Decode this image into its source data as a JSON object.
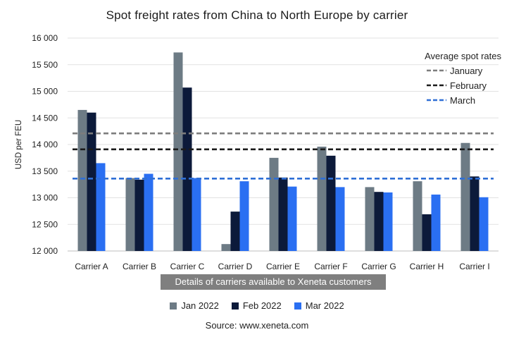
{
  "chart_data": {
    "type": "bar",
    "title": "Spot freight rates from China to North Europe by carrier",
    "ylabel": "USD per FEU",
    "xlabel": "Details of carriers available to Xeneta customers",
    "ylim": [
      12000,
      16000
    ],
    "yticks": [
      "12 000",
      "12 500",
      "13 000",
      "13 500",
      "14 000",
      "14 500",
      "15 000",
      "15 500",
      "16 000"
    ],
    "grid": true,
    "categories": [
      "Carrier A",
      "Carrier B",
      "Carrier C",
      "Carrier D",
      "Carrier E",
      "Carrier F",
      "Carrier G",
      "Carrier H",
      "Carrier I"
    ],
    "series": [
      {
        "name": "Jan 2022",
        "color": "#6d7b85",
        "values": [
          14650,
          13370,
          15730,
          12130,
          13750,
          13960,
          13200,
          13310,
          14030
        ]
      },
      {
        "name": "Feb 2022",
        "color": "#0c1a3a",
        "values": [
          14600,
          13340,
          15070,
          12740,
          13380,
          13790,
          13110,
          12690,
          13400
        ]
      },
      {
        "name": "Mar 2022",
        "color": "#2a6ff2",
        "values": [
          13650,
          13450,
          13370,
          13310,
          13210,
          13200,
          13100,
          13060,
          13010
        ]
      }
    ],
    "reference_lines": {
      "title": "Average spot rates",
      "lines": [
        {
          "name": "January",
          "value": 14210,
          "color": "#7d7d7d"
        },
        {
          "name": "February",
          "value": 13910,
          "color": "#1b1b1b"
        },
        {
          "name": "March",
          "value": 13360,
          "color": "#2f6fd6"
        }
      ]
    },
    "legend_placement": "bottom",
    "source": "Source: www.xeneta.com"
  }
}
